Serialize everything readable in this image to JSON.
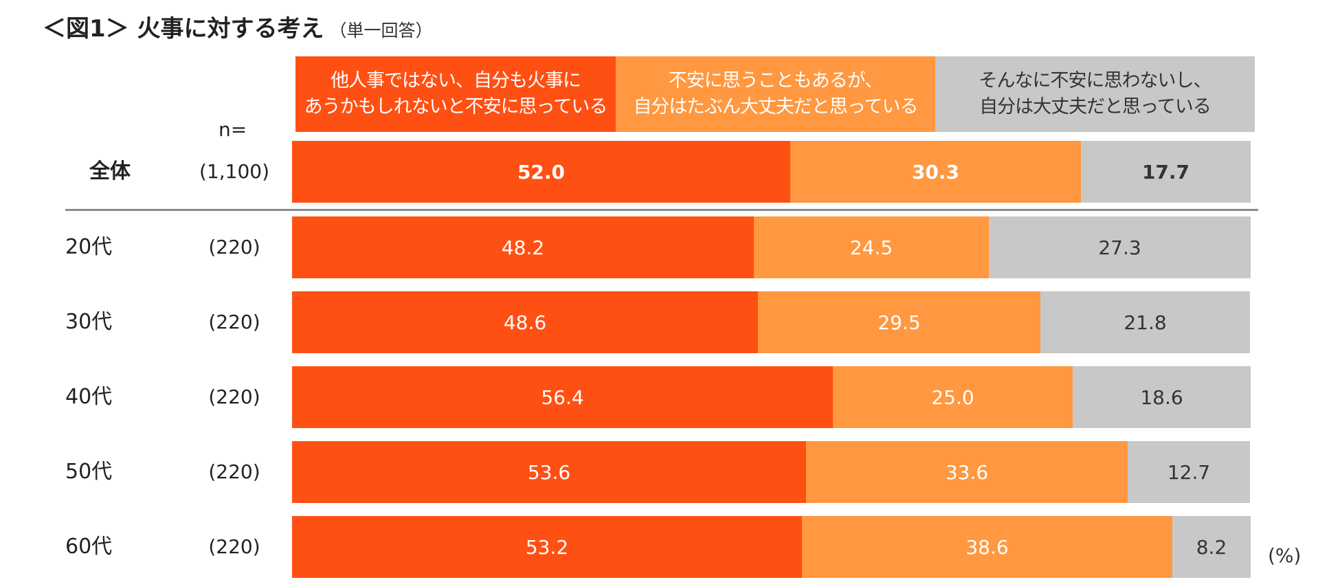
{
  "title": "＜図1＞ 火事に対する考え",
  "subtitle": "（単一回答）",
  "n_header": "n=",
  "unit_label": "(%)",
  "colors": {
    "cat1": "#FF5014",
    "cat2": "#FF9840",
    "cat3": "#C8C8C8",
    "text_on_dark": "#FFFFFF",
    "text_on_light": "#333333",
    "divider": "#8A8A8A"
  },
  "chart_data": {
    "type": "bar",
    "orientation": "horizontal",
    "stacked": true,
    "title": "＜図1＞ 火事に対する考え",
    "subtitle": "（単一回答）",
    "unit": "(%)",
    "xlim": [
      0,
      100
    ],
    "legend_position": "top",
    "series_names": [
      "他人事ではない、自分も火事に\nあうかもしれないと不安に思っている",
      "不安に思うこともあるが、\n自分はたぶん大丈夫だと思っている",
      "そんなに不安に思わないし、\n自分は大丈夫だと思っている"
    ],
    "categories": [
      "全体",
      "20代",
      "30代",
      "40代",
      "50代",
      "60代"
    ],
    "n": [
      "(1,100)",
      "(220)",
      "(220)",
      "(220)",
      "(220)",
      "(220)"
    ],
    "series": [
      {
        "name": "他人事ではない、自分も火事に\nあうかもしれないと不安に思っている",
        "values": [
          52.0,
          48.2,
          48.6,
          56.4,
          53.6,
          53.2
        ]
      },
      {
        "name": "不安に思うこともあるが、\n自分はたぶん大丈夫だと思っている",
        "values": [
          30.3,
          24.5,
          29.5,
          25.0,
          33.6,
          38.6
        ]
      },
      {
        "name": "そんなに不安に思わないし、\n自分は大丈夫だと思っている",
        "values": [
          17.7,
          27.3,
          21.8,
          18.6,
          12.7,
          8.2
        ]
      }
    ]
  }
}
